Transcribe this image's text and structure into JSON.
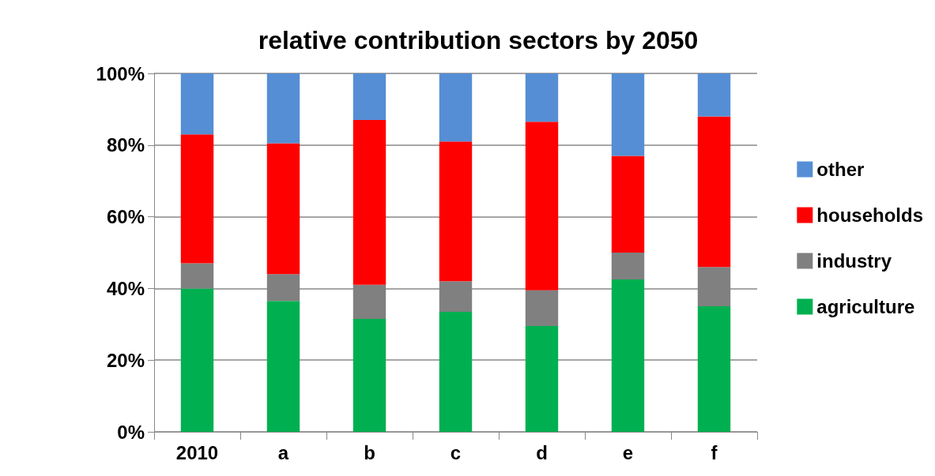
{
  "chart_data": {
    "type": "bar",
    "stacked": true,
    "title": "relative contribution sectors by 2050",
    "categories": [
      "2010",
      "a",
      "b",
      "c",
      "d",
      "e",
      "f"
    ],
    "series": [
      {
        "name": "agriculture",
        "color": "#00b050",
        "values": [
          40,
          36.5,
          31.5,
          33.5,
          29.5,
          42.5,
          35
        ]
      },
      {
        "name": "industry",
        "color": "#808080",
        "values": [
          7,
          7.5,
          9.5,
          8.5,
          10,
          7.5,
          11
        ]
      },
      {
        "name": "households",
        "color": "#ff0000",
        "values": [
          36,
          36.5,
          46,
          39,
          47,
          27,
          42
        ]
      },
      {
        "name": "other",
        "color": "#558ed5",
        "values": [
          17,
          19.5,
          13,
          19,
          13.5,
          23,
          12
        ]
      }
    ],
    "ylim": [
      0,
      100
    ],
    "yticks": [
      {
        "value": 0,
        "label": "0%"
      },
      {
        "value": 20,
        "label": "20%"
      },
      {
        "value": 40,
        "label": "40%"
      },
      {
        "value": 60,
        "label": "60%"
      },
      {
        "value": 80,
        "label": "80%"
      },
      {
        "value": 100,
        "label": "100%"
      }
    ],
    "grid": "y",
    "legend": "right"
  }
}
